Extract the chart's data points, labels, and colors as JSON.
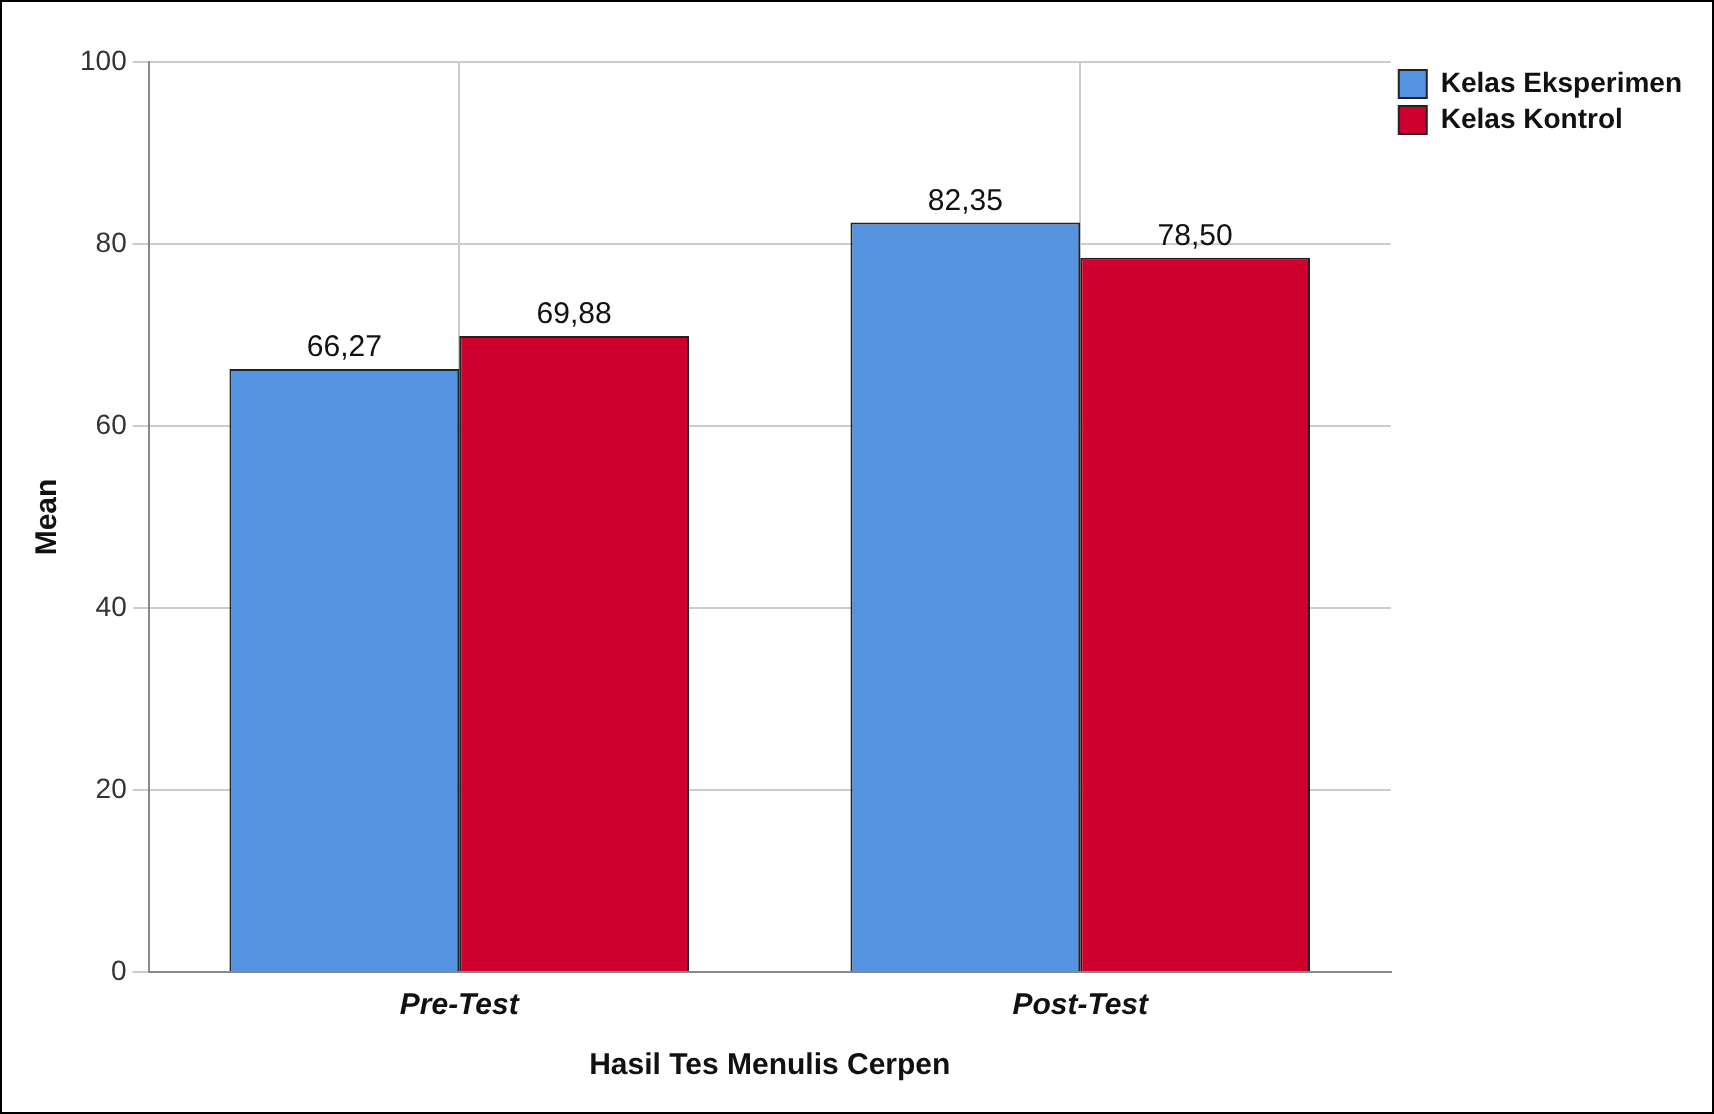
{
  "chart_data": {
    "type": "bar",
    "xlabel": "Hasil Tes Menulis Cerpen",
    "ylabel": "Mean",
    "categories": [
      "Pre-Test",
      "Post-Test"
    ],
    "series": [
      {
        "name": "Kelas Eksperimen",
        "color": "#5592e0",
        "values": [
          66.27,
          82.35
        ],
        "value_labels": [
          "66,27",
          "82,35"
        ]
      },
      {
        "name": "Kelas Kontrol",
        "color": "#d0002e",
        "values": [
          69.88,
          78.5
        ],
        "value_labels": [
          "69,88",
          "78,50"
        ]
      }
    ],
    "ylim": [
      0,
      100
    ],
    "yticks": [
      0,
      20,
      40,
      60,
      80,
      100
    ],
    "grid": true,
    "legend": "top right"
  }
}
